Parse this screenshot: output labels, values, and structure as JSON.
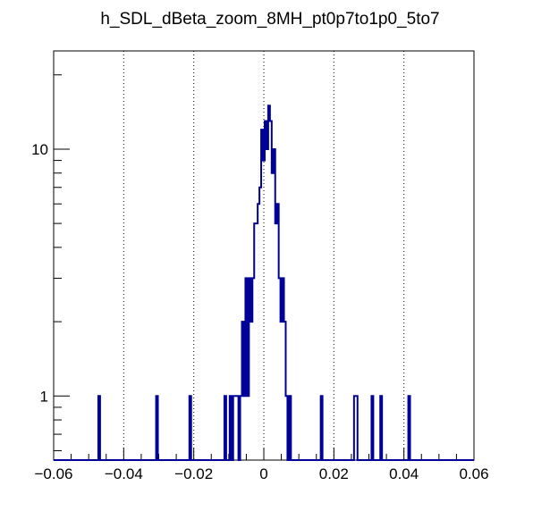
{
  "chart_data": {
    "type": "histogram",
    "title": "h_SDL_dBeta_zoom_8MH_pt0p7to1p0_5to7",
    "xlabel": "",
    "ylabel": "",
    "xlim": [
      -0.06,
      0.06
    ],
    "ylim": [
      0.55,
      25
    ],
    "y_scale": "log",
    "bin_width": 0.0005,
    "x_ticks": [
      {
        "value": -0.06,
        "label": "−0.06"
      },
      {
        "value": -0.04,
        "label": "−0.04"
      },
      {
        "value": -0.02,
        "label": "−0.02"
      },
      {
        "value": 0,
        "label": "0"
      },
      {
        "value": 0.02,
        "label": "0.02"
      },
      {
        "value": 0.04,
        "label": "0.04"
      },
      {
        "value": 0.06,
        "label": "0.06"
      }
    ],
    "y_ticks": [
      {
        "value": 1,
        "label": "1"
      },
      {
        "value": 10,
        "label": "10"
      }
    ],
    "grid_x_values": [
      -0.04,
      -0.02,
      0,
      0.02,
      0.04
    ],
    "grid_style": "dotted",
    "line_color": "#000099",
    "series": [
      {
        "bins": [
          [
            -0.047,
            1
          ],
          [
            -0.0305,
            1
          ],
          [
            -0.021,
            1
          ],
          [
            -0.011,
            1
          ],
          [
            -0.0095,
            1
          ],
          [
            -0.0085,
            1
          ],
          [
            -0.008,
            1
          ],
          [
            -0.0075,
            1
          ],
          [
            -0.0065,
            1
          ],
          [
            -0.006,
            2
          ],
          [
            -0.0055,
            1
          ],
          [
            -0.005,
            3
          ],
          [
            -0.0045,
            1
          ],
          [
            -0.004,
            3
          ],
          [
            -0.0035,
            2
          ],
          [
            -0.003,
            3
          ],
          [
            -0.0025,
            5
          ],
          [
            -0.002,
            5
          ],
          [
            -0.0015,
            6
          ],
          [
            -0.001,
            7
          ],
          [
            -0.0005,
            12
          ],
          [
            0.0,
            9
          ],
          [
            0.0005,
            13
          ],
          [
            0.001,
            10
          ],
          [
            0.0015,
            15
          ],
          [
            0.002,
            13
          ],
          [
            0.0025,
            8
          ],
          [
            0.003,
            10
          ],
          [
            0.0035,
            5
          ],
          [
            0.004,
            6
          ],
          [
            0.0045,
            3
          ],
          [
            0.005,
            2
          ],
          [
            0.0055,
            3
          ],
          [
            0.006,
            2
          ],
          [
            0.0065,
            1
          ],
          [
            0.0075,
            1
          ],
          [
            0.0165,
            1
          ],
          [
            0.026,
            1
          ],
          [
            0.0265,
            1
          ],
          [
            0.031,
            1
          ],
          [
            0.0335,
            1
          ],
          [
            0.0415,
            1
          ]
        ]
      }
    ]
  }
}
